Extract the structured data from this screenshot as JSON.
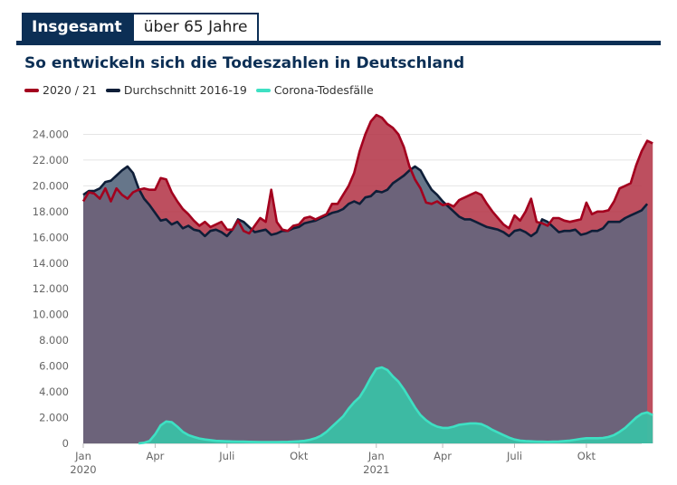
{
  "tabs": [
    {
      "label": "Insgesamt",
      "active": true
    },
    {
      "label": "über 65 Jahre",
      "active": false
    }
  ],
  "chart_data": {
    "type": "area",
    "title": "So entwickeln sich die Todeszahlen in Deutschland",
    "legend_position": "top-left",
    "grid": true,
    "xlim": [
      1,
      102
    ],
    "ylim": [
      0,
      26000
    ],
    "yticks": [
      {
        "value": 0,
        "label": "0"
      },
      {
        "value": 2000,
        "label": "2.000"
      },
      {
        "value": 4000,
        "label": "4.000"
      },
      {
        "value": 6000,
        "label": "6.000"
      },
      {
        "value": 8000,
        "label": "8.000"
      },
      {
        "value": 10000,
        "label": "10.000"
      },
      {
        "value": 12000,
        "label": "12.000"
      },
      {
        "value": 14000,
        "label": "14.000"
      },
      {
        "value": 16000,
        "label": "16.000"
      },
      {
        "value": 18000,
        "label": "18.000"
      },
      {
        "value": 20000,
        "label": "20.000"
      },
      {
        "value": 22000,
        "label": "22.000"
      },
      {
        "value": 24000,
        "label": "24.000"
      }
    ],
    "xticks": [
      {
        "week": 1,
        "label": "Jan",
        "sub": "2020"
      },
      {
        "week": 14,
        "label": "Apr",
        "sub": ""
      },
      {
        "week": 27,
        "label": "Juli",
        "sub": ""
      },
      {
        "week": 40,
        "label": "Okt",
        "sub": ""
      },
      {
        "week": 54,
        "label": "Jan",
        "sub": "2021"
      },
      {
        "week": 66,
        "label": "Apr",
        "sub": ""
      },
      {
        "week": 79,
        "label": "Juli",
        "sub": ""
      },
      {
        "week": 92,
        "label": "Okt",
        "sub": ""
      }
    ],
    "series": [
      {
        "name": "2020 / 21",
        "color": "#a3001e",
        "fill": "#c0414f",
        "values": [
          18800,
          19500,
          19400,
          19000,
          19800,
          18800,
          19800,
          19300,
          19000,
          19500,
          19700,
          19800,
          19700,
          19700,
          20600,
          20500,
          19500,
          18800,
          18200,
          17800,
          17300,
          16900,
          17200,
          16800,
          17000,
          17200,
          16600,
          16600,
          17300,
          16500,
          16300,
          16900,
          17500,
          17200,
          19700,
          17200,
          16600,
          16500,
          16900,
          17000,
          17500,
          17600,
          17400,
          17600,
          17800,
          18600,
          18600,
          19300,
          20000,
          21000,
          22700,
          24000,
          25000,
          25500,
          25300,
          24800,
          24500,
          24000,
          23000,
          21500,
          20500,
          19800,
          18700,
          18600,
          18800,
          18500,
          18600,
          18400,
          18900,
          19100,
          19300,
          19500,
          19300,
          18600,
          18000,
          17500,
          17000,
          16700,
          17700,
          17300,
          18000,
          19000,
          17200,
          17100,
          16900,
          17500,
          17500,
          17300,
          17200,
          17300,
          17400,
          18700,
          17800,
          18000,
          18000,
          18100,
          18800,
          19800,
          20000,
          20200,
          21600,
          22700,
          23500,
          23300
        ]
      },
      {
        "name": "Durchschnitt 2016-19",
        "color": "#0e1e38",
        "fill": "#66768a",
        "values": [
          19300,
          19600,
          19600,
          19800,
          20300,
          20400,
          20800,
          21200,
          21500,
          21000,
          19800,
          19000,
          18500,
          17900,
          17300,
          17400,
          17000,
          17200,
          16700,
          16900,
          16600,
          16500,
          16100,
          16500,
          16600,
          16400,
          16100,
          16600,
          17400,
          17200,
          16800,
          16400,
          16500,
          16600,
          16200,
          16300,
          16500,
          16500,
          16700,
          16800,
          17100,
          17200,
          17300,
          17500,
          17700,
          17900,
          18000,
          18200,
          18600,
          18800,
          18600,
          19100,
          19200,
          19600,
          19500,
          19700,
          20200,
          20500,
          20800,
          21200,
          21500,
          21200,
          20400,
          19700,
          19300,
          18800,
          18400,
          18000,
          17600,
          17400,
          17400,
          17200,
          17000,
          16800,
          16700,
          16600,
          16400,
          16100,
          16500,
          16600,
          16400,
          16100,
          16400,
          17400,
          17200,
          16800,
          16400,
          16500,
          16500,
          16600,
          16200,
          16300,
          16500,
          16500,
          16700,
          17200,
          17200,
          17200,
          17500,
          17700,
          17900,
          18100,
          18600
        ]
      },
      {
        "name": "Corona-Todesfälle",
        "color": "#3ee0c3",
        "fill": "#3bbfa5",
        "start_week": 11,
        "values": [
          0,
          50,
          200,
          700,
          1400,
          1700,
          1650,
          1300,
          900,
          650,
          500,
          380,
          300,
          250,
          200,
          180,
          160,
          150,
          140,
          130,
          120,
          110,
          100,
          100,
          100,
          100,
          110,
          120,
          140,
          160,
          200,
          280,
          400,
          600,
          900,
          1300,
          1700,
          2100,
          2700,
          3200,
          3600,
          4300,
          5100,
          5800,
          5900,
          5700,
          5200,
          4800,
          4200,
          3500,
          2800,
          2200,
          1800,
          1500,
          1300,
          1200,
          1200,
          1300,
          1450,
          1500,
          1550,
          1550,
          1500,
          1300,
          1050,
          850,
          650,
          450,
          300,
          220,
          180,
          160,
          140,
          130,
          120,
          130,
          150,
          180,
          220,
          280,
          350,
          400,
          400,
          400,
          420,
          500,
          650,
          900,
          1200,
          1600,
          2000,
          2300,
          2400,
          2200
        ]
      }
    ]
  }
}
